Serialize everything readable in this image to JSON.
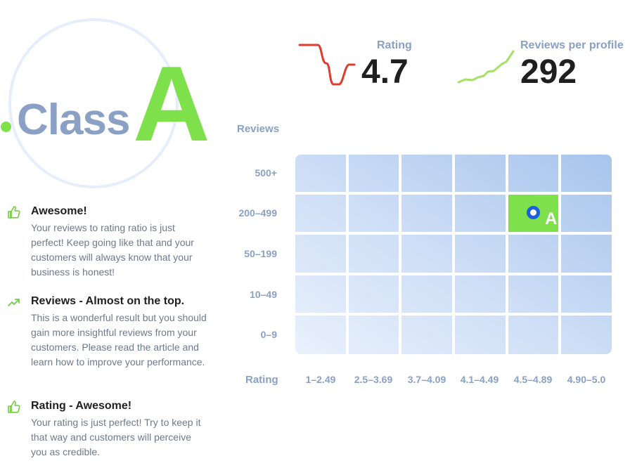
{
  "class_badge": {
    "word": "Class",
    "letter": "A"
  },
  "feedback": [
    {
      "icon": "thumbs-up-icon",
      "title": "Awesome!",
      "text": "Your reviews to rating ratio is just perfect! Keep going like that and your customers will always know that your business is honest!"
    },
    {
      "icon": "trending-up-icon",
      "title": "Reviews - Almost on the top.",
      "text": "This is a wonderful result but you should gain more insightful reviews from your customers. Please read the article and learn how to improve your performance."
    },
    {
      "icon": "thumbs-up-icon",
      "title": "Rating - Awesome!",
      "text": "Your rating is just perfect! Try to keep it that way and customers will perceive you as credible."
    }
  ],
  "stats": {
    "rating": {
      "label": "Rating",
      "value": "4.7",
      "trend_color": "#e03b2f"
    },
    "reviews_per_profile": {
      "label": "Reviews per profile",
      "value": "292",
      "trend_color": "#a6e064"
    }
  },
  "grid": {
    "y_title": "Reviews",
    "x_title": "Rating",
    "rows": [
      "500+",
      "200–499",
      "50–199",
      "10–49",
      "0–9"
    ],
    "columns": [
      "1–2.49",
      "2.5–3.69",
      "3.7–4.09",
      "4.1–4.49",
      "4.5–4.89",
      "4.90–5.0"
    ],
    "highlight": {
      "row": "200–499",
      "column": "4.5–4.89",
      "label": "A",
      "color": "#7ee04a",
      "marker_color": "#1a5de6"
    }
  }
}
